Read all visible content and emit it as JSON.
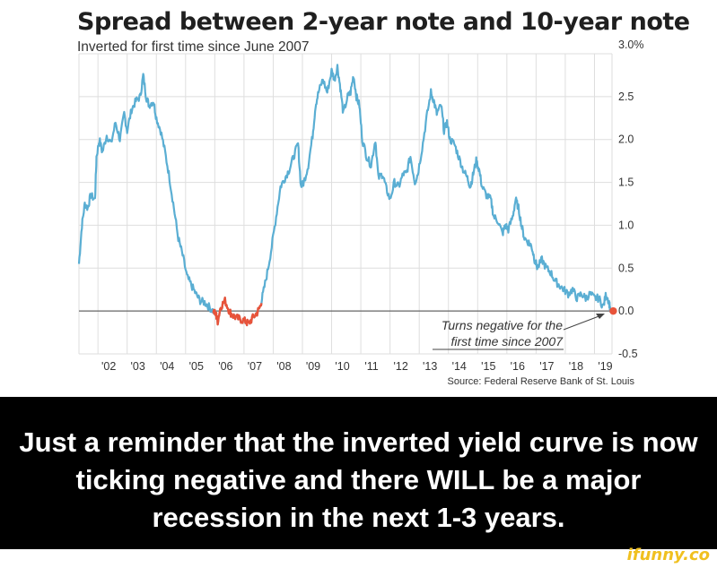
{
  "chart_data": {
    "type": "line",
    "title": "Spread between 2-year note and 10-year note",
    "subtitle": "Inverted for first time since June 2007",
    "source": "Source: Federal Reserve Bank of St. Louis",
    "x_tick_labels": [
      "'02",
      "'03",
      "'04",
      "'05",
      "'06",
      "'07",
      "'08",
      "'09",
      "'10",
      "'11",
      "'12",
      "'13",
      "'14",
      "'15",
      "'16",
      "'17",
      "'18",
      "'19"
    ],
    "y_tick_labels": [
      "3.0%",
      "2.5",
      "2.0",
      "1.5",
      "1.0",
      "0.5",
      "0.0",
      "-0.5"
    ],
    "y_ticks": [
      3.0,
      2.5,
      2.0,
      1.5,
      1.0,
      0.5,
      0.0,
      -0.5
    ],
    "ylim": [
      -0.5,
      3.0
    ],
    "xlim": [
      2001.35,
      2019.6
    ],
    "grid": true,
    "annotation": {
      "line1": "Turns negative for the",
      "line2": "first time since 2007"
    },
    "colors": {
      "line": "#5aaed3",
      "negative": "#e8533a",
      "marker": "#e8533a"
    },
    "series": [
      {
        "values": [
          [
            2001.35,
            0.55
          ],
          [
            2001.45,
            1.0
          ],
          [
            2001.55,
            1.25
          ],
          [
            2001.65,
            1.2
          ],
          [
            2001.75,
            1.35
          ],
          [
            2001.9,
            1.3
          ],
          [
            2001.95,
            1.8
          ],
          [
            2002.05,
            2.0
          ],
          [
            2002.15,
            1.85
          ],
          [
            2002.3,
            2.05
          ],
          [
            2002.45,
            1.95
          ],
          [
            2002.6,
            2.2
          ],
          [
            2002.75,
            2.0
          ],
          [
            2002.9,
            2.3
          ],
          [
            2003.0,
            2.1
          ],
          [
            2003.15,
            2.35
          ],
          [
            2003.3,
            2.45
          ],
          [
            2003.45,
            2.5
          ],
          [
            2003.55,
            2.75
          ],
          [
            2003.65,
            2.5
          ],
          [
            2003.75,
            2.4
          ],
          [
            2003.9,
            2.45
          ],
          [
            2004.0,
            2.25
          ],
          [
            2004.15,
            2.1
          ],
          [
            2004.3,
            1.85
          ],
          [
            2004.45,
            1.55
          ],
          [
            2004.6,
            1.2
          ],
          [
            2004.75,
            0.85
          ],
          [
            2004.9,
            0.65
          ],
          [
            2005.05,
            0.4
          ],
          [
            2005.2,
            0.3
          ],
          [
            2005.35,
            0.2
          ],
          [
            2005.5,
            0.12
          ],
          [
            2005.65,
            0.1
          ],
          [
            2005.8,
            0.05
          ],
          [
            2005.95,
            0.0
          ],
          [
            2006.05,
            -0.05
          ],
          [
            2006.1,
            -0.12
          ],
          [
            2006.2,
            0.05
          ],
          [
            2006.35,
            0.12
          ],
          [
            2006.5,
            0.0
          ],
          [
            2006.6,
            -0.05
          ],
          [
            2006.75,
            -0.08
          ],
          [
            2006.9,
            -0.1
          ],
          [
            2007.05,
            -0.12
          ],
          [
            2007.15,
            -0.15
          ],
          [
            2007.3,
            -0.08
          ],
          [
            2007.45,
            -0.02
          ],
          [
            2007.55,
            0.05
          ],
          [
            2007.65,
            0.2
          ],
          [
            2007.8,
            0.45
          ],
          [
            2007.95,
            0.75
          ],
          [
            2008.1,
            1.1
          ],
          [
            2008.25,
            1.45
          ],
          [
            2008.4,
            1.55
          ],
          [
            2008.55,
            1.65
          ],
          [
            2008.7,
            1.8
          ],
          [
            2008.85,
            1.95
          ],
          [
            2008.95,
            1.45
          ],
          [
            2009.05,
            1.5
          ],
          [
            2009.2,
            1.7
          ],
          [
            2009.35,
            2.05
          ],
          [
            2009.45,
            2.4
          ],
          [
            2009.55,
            2.55
          ],
          [
            2009.7,
            2.7
          ],
          [
            2009.85,
            2.55
          ],
          [
            2010.0,
            2.8
          ],
          [
            2010.1,
            2.7
          ],
          [
            2010.2,
            2.85
          ],
          [
            2010.3,
            2.6
          ],
          [
            2010.4,
            2.3
          ],
          [
            2010.55,
            2.5
          ],
          [
            2010.65,
            2.55
          ],
          [
            2010.75,
            2.75
          ],
          [
            2010.85,
            2.5
          ],
          [
            2010.95,
            2.4
          ],
          [
            2011.05,
            2.0
          ],
          [
            2011.2,
            1.8
          ],
          [
            2011.35,
            1.7
          ],
          [
            2011.5,
            2.0
          ],
          [
            2011.6,
            1.55
          ],
          [
            2011.75,
            1.6
          ],
          [
            2011.85,
            1.45
          ],
          [
            2012.0,
            1.3
          ],
          [
            2012.15,
            1.5
          ],
          [
            2012.3,
            1.45
          ],
          [
            2012.45,
            1.6
          ],
          [
            2012.55,
            1.6
          ],
          [
            2012.7,
            1.8
          ],
          [
            2012.85,
            1.5
          ],
          [
            2012.95,
            1.6
          ],
          [
            2013.1,
            1.9
          ],
          [
            2013.25,
            2.25
          ],
          [
            2013.4,
            2.55
          ],
          [
            2013.5,
            2.45
          ],
          [
            2013.6,
            2.3
          ],
          [
            2013.75,
            2.4
          ],
          [
            2013.85,
            2.1
          ],
          [
            2013.95,
            2.2
          ],
          [
            2014.05,
            2.0
          ],
          [
            2014.2,
            1.95
          ],
          [
            2014.35,
            1.8
          ],
          [
            2014.5,
            1.65
          ],
          [
            2014.65,
            1.55
          ],
          [
            2014.75,
            1.45
          ],
          [
            2014.85,
            1.6
          ],
          [
            2014.95,
            1.75
          ],
          [
            2015.05,
            1.65
          ],
          [
            2015.15,
            1.45
          ],
          [
            2015.3,
            1.35
          ],
          [
            2015.45,
            1.3
          ],
          [
            2015.55,
            1.1
          ],
          [
            2015.7,
            1.05
          ],
          [
            2015.85,
            0.9
          ],
          [
            2015.95,
            1.0
          ],
          [
            2016.05,
            0.95
          ],
          [
            2016.2,
            1.1
          ],
          [
            2016.3,
            1.3
          ],
          [
            2016.4,
            1.2
          ],
          [
            2016.5,
            1.0
          ],
          [
            2016.6,
            0.85
          ],
          [
            2016.75,
            0.8
          ],
          [
            2016.85,
            0.75
          ],
          [
            2016.95,
            0.6
          ],
          [
            2017.05,
            0.5
          ],
          [
            2017.2,
            0.6
          ],
          [
            2017.35,
            0.5
          ],
          [
            2017.5,
            0.45
          ],
          [
            2017.65,
            0.35
          ],
          [
            2017.8,
            0.3
          ],
          [
            2017.95,
            0.25
          ],
          [
            2018.1,
            0.2
          ],
          [
            2018.25,
            0.25
          ],
          [
            2018.4,
            0.15
          ],
          [
            2018.55,
            0.2
          ],
          [
            2018.7,
            0.15
          ],
          [
            2018.85,
            0.2
          ],
          [
            2019.0,
            0.15
          ],
          [
            2019.15,
            0.15
          ],
          [
            2019.3,
            0.05
          ],
          [
            2019.4,
            0.2
          ],
          [
            2019.5,
            0.1
          ],
          [
            2019.55,
            0.0
          ]
        ]
      }
    ]
  },
  "caption": "Just a reminder that the inverted yield curve is now ticking negative and there WILL be a major recession in the next 1-3 years.",
  "watermark": "ifunny.co"
}
